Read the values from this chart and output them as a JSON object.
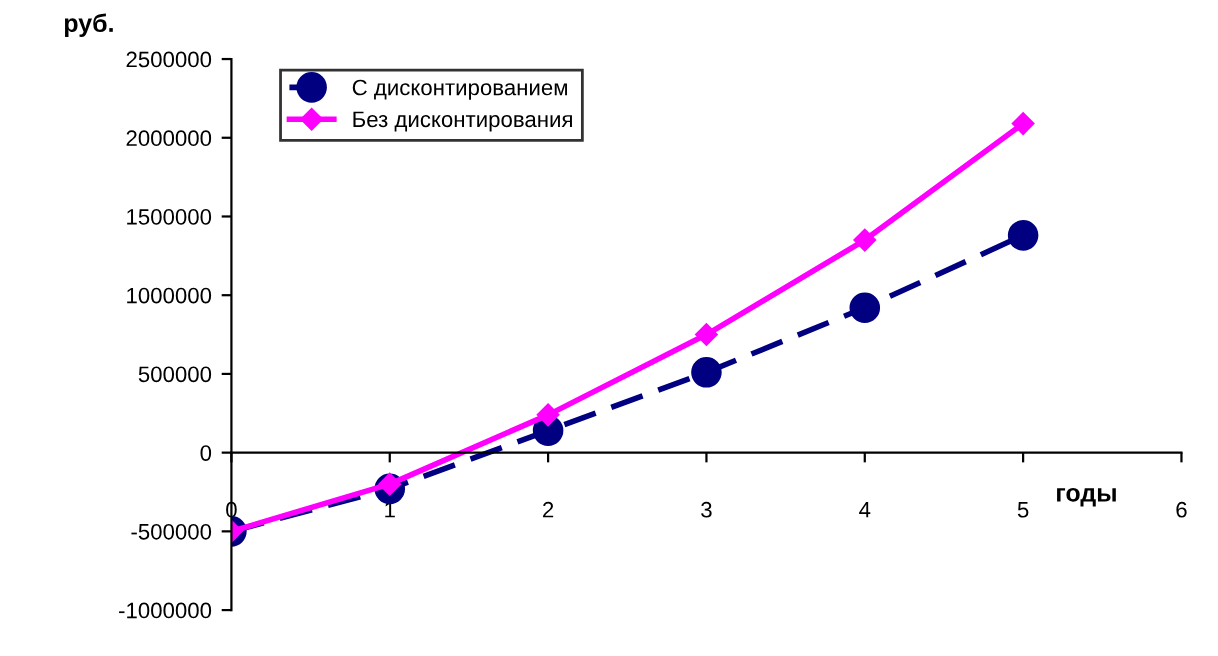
{
  "chart_data": {
    "type": "line",
    "xlabel": "годы",
    "ylabel": "руб.",
    "x": [
      0,
      1,
      2,
      3,
      4,
      5
    ],
    "series": [
      {
        "name": "С дисконтированием",
        "color": "#000080",
        "values": [
          -500000,
          -230000,
          140000,
          510000,
          920000,
          1380000
        ],
        "marker": "circle",
        "line_style": "dashed"
      },
      {
        "name": "Без дисконтирования",
        "color": "#ff00ff",
        "values": [
          -500000,
          -200000,
          240000,
          750000,
          1350000,
          2090000
        ],
        "marker": "diamond",
        "line_style": "solid"
      }
    ],
    "xlim": [
      0,
      6
    ],
    "xticks": [
      0,
      1,
      2,
      3,
      4,
      5,
      6
    ],
    "ylim": [
      -1000000,
      2500000
    ],
    "yticks": [
      -1000000,
      -500000,
      0,
      500000,
      1000000,
      1500000,
      2000000,
      2500000
    ],
    "grid": false,
    "legend": "top left"
  }
}
